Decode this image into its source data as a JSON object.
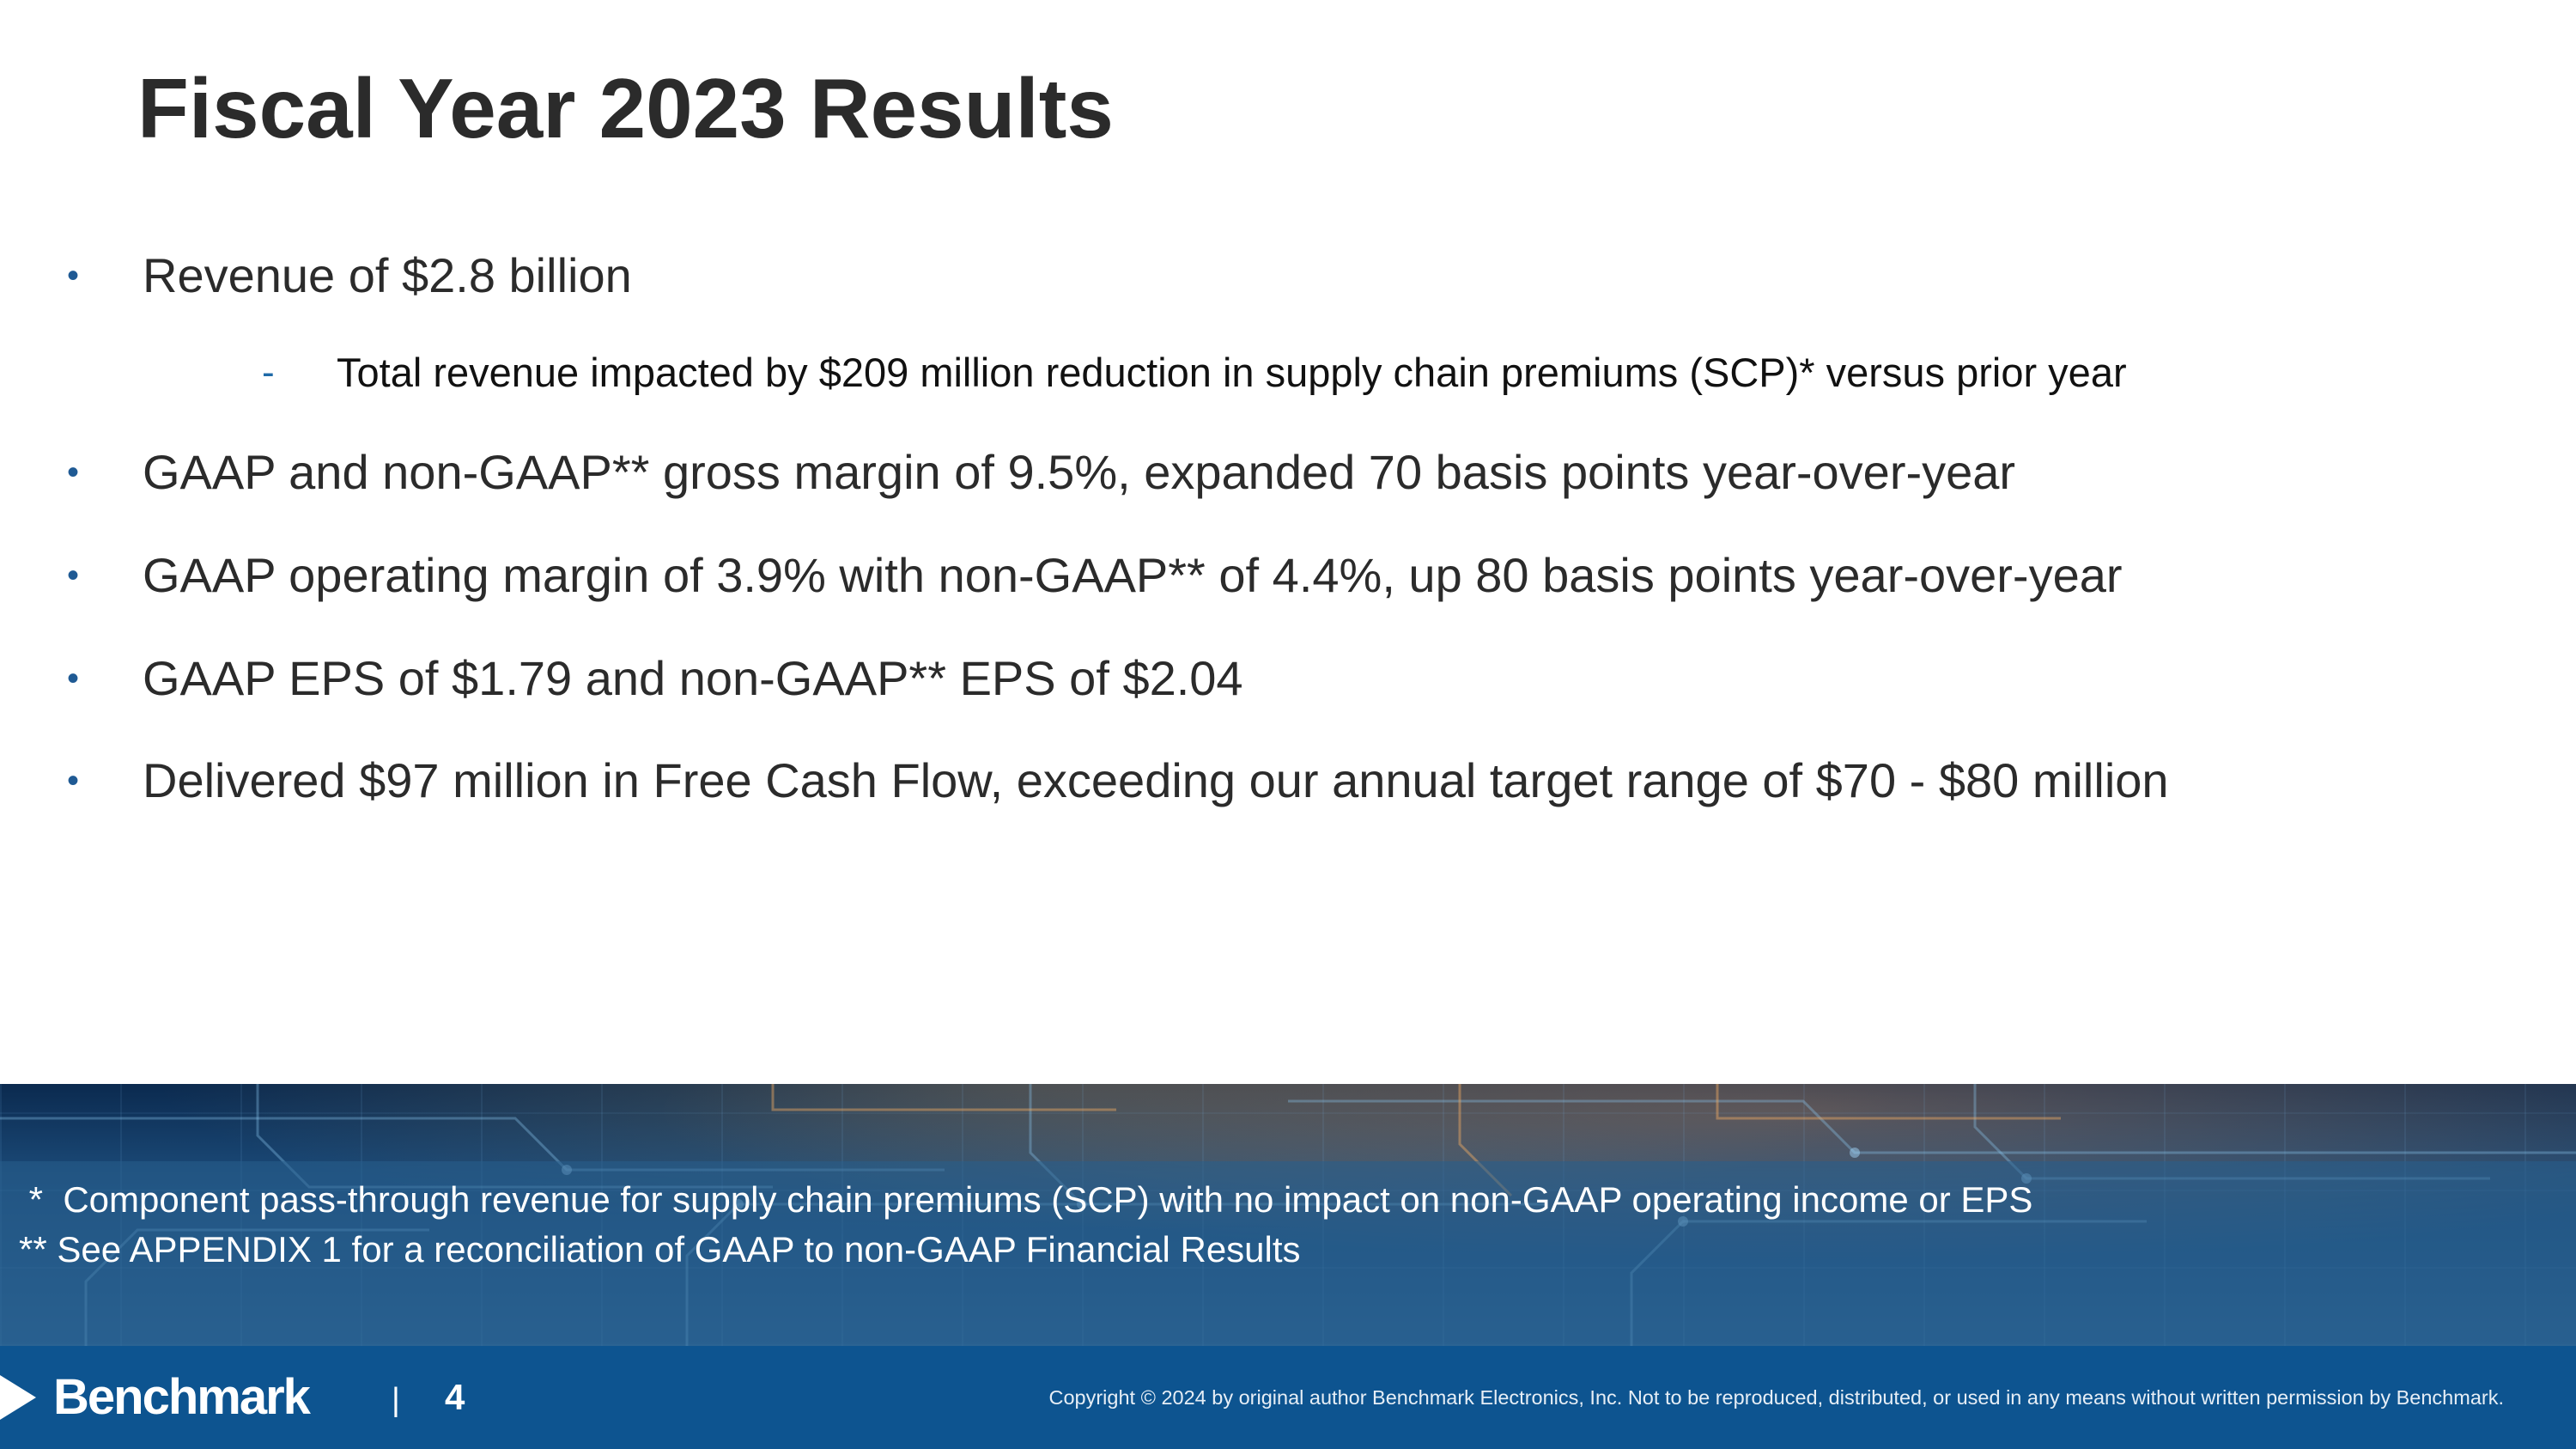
{
  "slide": {
    "title": "Fiscal Year 2023 Results"
  },
  "bullets": [
    {
      "marker": "•",
      "text": "Revenue of $2.8 billion"
    },
    {
      "marker": "•",
      "text": "GAAP and non-GAAP** gross margin of 9.5%, expanded 70 basis points year-over-year"
    },
    {
      "marker": "•",
      "text": "GAAP operating margin of 3.9% with non-GAAP** of 4.4%, up 80 basis points year-over-year"
    },
    {
      "marker": "•",
      "text": "GAAP EPS of $1.79 and non-GAAP** EPS of $2.04"
    },
    {
      "marker": "•",
      "text": "Delivered $97 million in Free Cash Flow, exceeding our annual target range of $70 - $80 million"
    }
  ],
  "sub_bullet": {
    "marker": "-",
    "text": "Total revenue impacted by $209 million reduction in supply chain premiums (SCP)* versus prior year"
  },
  "footnotes": [
    " *  Component pass-through revenue for supply chain premiums (SCP) with no impact on non-GAAP operating income or EPS",
    "** See APPENDIX 1 for a reconciliation of GAAP to non-GAAP Financial Results"
  ],
  "footer": {
    "logo_text": "Benchmark",
    "logo_mark": "▶",
    "separator": "|",
    "page_number": "4",
    "copyright": "Copyright © 2024 by original author Benchmark Electronics, Inc. Not to be reproduced, distributed, or used in any means without written permission by Benchmark."
  },
  "colors": {
    "bullet_marker": "#1f5a94",
    "footer_bar": "#0d5490",
    "title_text": "#2b2b2b"
  },
  "icons": {
    "logo": "chevron-right-logo-mark",
    "background": "circuit-board-image"
  }
}
